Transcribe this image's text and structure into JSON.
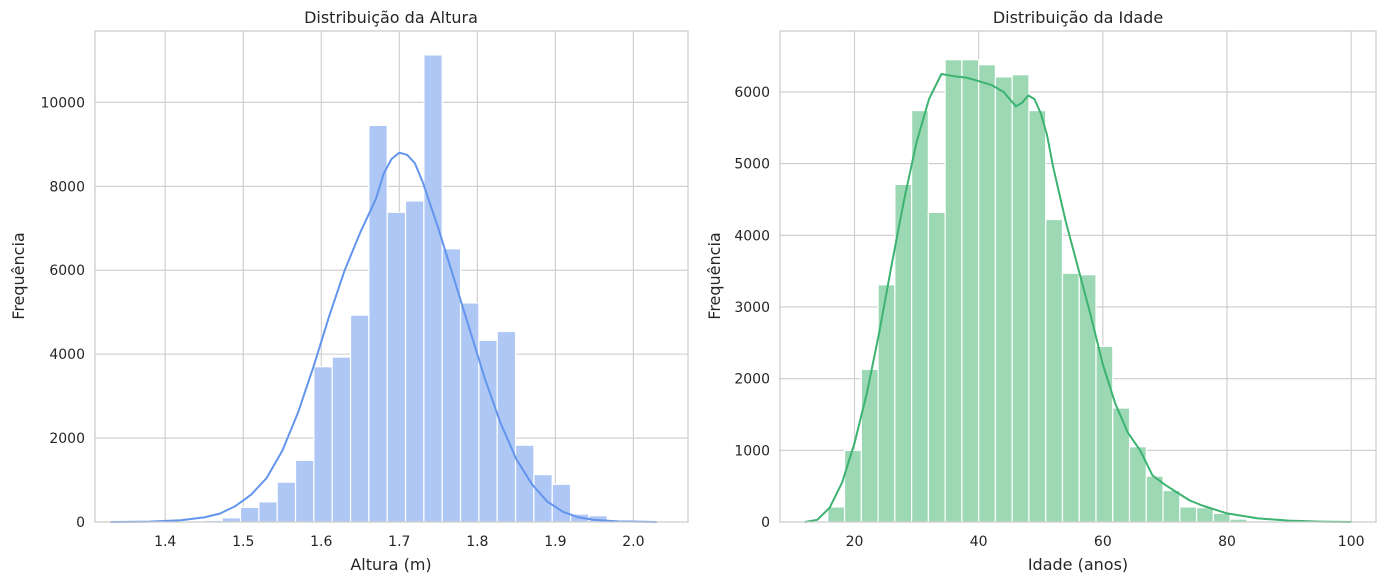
{
  "chart_data": [
    {
      "type": "bar",
      "title": "Distribuição da Altura",
      "xlabel": "Altura (m)",
      "ylabel": "Frequência",
      "xlim": [
        1.31,
        2.07
      ],
      "ylim": [
        0,
        11700
      ],
      "xticks": [
        1.4,
        1.5,
        1.6,
        1.7,
        1.8,
        1.9,
        2.0
      ],
      "xtick_labels": [
        "1.4",
        "1.5",
        "1.6",
        "1.7",
        "1.8",
        "1.9",
        "2.0"
      ],
      "yticks": [
        0,
        2000,
        4000,
        6000,
        8000,
        10000
      ],
      "ytick_labels": [
        "0",
        "2000",
        "4000",
        "6000",
        "8000",
        "10000"
      ],
      "bar_color": "#aec7f4",
      "kde_color": "#6495ed",
      "bins": [
        {
          "x0": 1.332,
          "x1": 1.3555,
          "value": 0
        },
        {
          "x0": 1.3555,
          "x1": 1.379,
          "value": 0
        },
        {
          "x0": 1.379,
          "x1": 1.4025,
          "value": 0
        },
        {
          "x0": 1.4025,
          "x1": 1.426,
          "value": 0
        },
        {
          "x0": 1.426,
          "x1": 1.4495,
          "value": 20
        },
        {
          "x0": 1.4495,
          "x1": 1.473,
          "value": 40
        },
        {
          "x0": 1.473,
          "x1": 1.4965,
          "value": 100
        },
        {
          "x0": 1.4965,
          "x1": 1.52,
          "value": 350
        },
        {
          "x0": 1.52,
          "x1": 1.5435,
          "value": 480
        },
        {
          "x0": 1.5435,
          "x1": 1.567,
          "value": 950
        },
        {
          "x0": 1.567,
          "x1": 1.5905,
          "value": 1470
        },
        {
          "x0": 1.5905,
          "x1": 1.614,
          "value": 3700
        },
        {
          "x0": 1.614,
          "x1": 1.6375,
          "value": 3930
        },
        {
          "x0": 1.6375,
          "x1": 1.661,
          "value": 4930
        },
        {
          "x0": 1.661,
          "x1": 1.6845,
          "value": 9450
        },
        {
          "x0": 1.6845,
          "x1": 1.708,
          "value": 7380
        },
        {
          "x0": 1.708,
          "x1": 1.7315,
          "value": 7650
        },
        {
          "x0": 1.7315,
          "x1": 1.755,
          "value": 11130
        },
        {
          "x0": 1.755,
          "x1": 1.7785,
          "value": 6510
        },
        {
          "x0": 1.7785,
          "x1": 1.802,
          "value": 5220
        },
        {
          "x0": 1.802,
          "x1": 1.8255,
          "value": 4330
        },
        {
          "x0": 1.8255,
          "x1": 1.849,
          "value": 4540
        },
        {
          "x0": 1.849,
          "x1": 1.8725,
          "value": 1830
        },
        {
          "x0": 1.8725,
          "x1": 1.896,
          "value": 1130
        },
        {
          "x0": 1.896,
          "x1": 1.9195,
          "value": 900
        },
        {
          "x0": 1.9195,
          "x1": 1.943,
          "value": 190
        },
        {
          "x0": 1.943,
          "x1": 1.9665,
          "value": 150
        },
        {
          "x0": 1.9665,
          "x1": 1.99,
          "value": 40
        },
        {
          "x0": 1.99,
          "x1": 2.0135,
          "value": 10
        },
        {
          "x0": 2.0135,
          "x1": 2.037,
          "value": 0
        }
      ],
      "kde": {
        "x": [
          1.33,
          1.38,
          1.42,
          1.45,
          1.47,
          1.49,
          1.51,
          1.53,
          1.55,
          1.57,
          1.59,
          1.61,
          1.63,
          1.65,
          1.67,
          1.68,
          1.69,
          1.7,
          1.71,
          1.72,
          1.73,
          1.75,
          1.77,
          1.79,
          1.81,
          1.83,
          1.85,
          1.87,
          1.89,
          1.91,
          1.93,
          1.95,
          1.98,
          2.03
        ],
        "y": [
          0,
          10,
          40,
          110,
          200,
          380,
          650,
          1050,
          1700,
          2600,
          3700,
          4900,
          6000,
          6900,
          7700,
          8300,
          8650,
          8800,
          8750,
          8550,
          8100,
          7000,
          5800,
          4600,
          3400,
          2350,
          1500,
          900,
          480,
          240,
          110,
          50,
          15,
          0
        ]
      }
    },
    {
      "type": "bar",
      "title": "Distribuição da Idade",
      "xlabel": "Idade (anos)",
      "ylabel": "Frequência",
      "xlim": [
        8,
        104
      ],
      "ylim": [
        0,
        6850
      ],
      "xticks": [
        20,
        40,
        60,
        80,
        100
      ],
      "xtick_labels": [
        "20",
        "40",
        "60",
        "80",
        "100"
      ],
      "yticks": [
        0,
        1000,
        2000,
        3000,
        4000,
        5000,
        6000
      ],
      "ytick_labels": [
        "0",
        "1000",
        "2000",
        "3000",
        "4000",
        "5000",
        "6000"
      ],
      "bar_color": "#9dd8b5",
      "kde_color": "#3cb371",
      "bins": [
        {
          "x0": 13.0,
          "x1": 15.7,
          "value": 0
        },
        {
          "x0": 15.7,
          "x1": 18.4,
          "value": 210
        },
        {
          "x0": 18.4,
          "x1": 21.1,
          "value": 1000
        },
        {
          "x0": 21.1,
          "x1": 23.8,
          "value": 2130
        },
        {
          "x0": 23.8,
          "x1": 26.5,
          "value": 3310
        },
        {
          "x0": 26.5,
          "x1": 29.2,
          "value": 4710
        },
        {
          "x0": 29.2,
          "x1": 31.9,
          "value": 5740
        },
        {
          "x0": 31.9,
          "x1": 34.6,
          "value": 4320
        },
        {
          "x0": 34.6,
          "x1": 37.3,
          "value": 6450
        },
        {
          "x0": 37.3,
          "x1": 40.0,
          "value": 6450
        },
        {
          "x0": 40.0,
          "x1": 42.7,
          "value": 6380
        },
        {
          "x0": 42.7,
          "x1": 45.4,
          "value": 6210
        },
        {
          "x0": 45.4,
          "x1": 48.1,
          "value": 6240
        },
        {
          "x0": 48.1,
          "x1": 50.8,
          "value": 5740
        },
        {
          "x0": 50.8,
          "x1": 53.5,
          "value": 4220
        },
        {
          "x0": 53.5,
          "x1": 56.2,
          "value": 3470
        },
        {
          "x0": 56.2,
          "x1": 58.9,
          "value": 3450
        },
        {
          "x0": 58.9,
          "x1": 61.6,
          "value": 2450
        },
        {
          "x0": 61.6,
          "x1": 64.3,
          "value": 1590
        },
        {
          "x0": 64.3,
          "x1": 67.0,
          "value": 1050
        },
        {
          "x0": 67.0,
          "x1": 69.7,
          "value": 640
        },
        {
          "x0": 69.7,
          "x1": 72.4,
          "value": 440
        },
        {
          "x0": 72.4,
          "x1": 75.1,
          "value": 210
        },
        {
          "x0": 75.1,
          "x1": 77.8,
          "value": 200
        },
        {
          "x0": 77.8,
          "x1": 80.5,
          "value": 120
        },
        {
          "x0": 80.5,
          "x1": 83.2,
          "value": 40
        },
        {
          "x0": 83.2,
          "x1": 85.9,
          "value": 0
        }
      ],
      "kde": {
        "x": [
          12,
          14,
          16,
          18,
          20,
          22,
          24,
          26,
          28,
          30,
          32,
          34,
          36,
          38,
          40,
          42,
          44,
          46,
          47,
          48,
          49,
          50,
          51,
          52,
          54,
          56,
          58,
          60,
          62,
          64,
          66,
          68,
          70,
          72,
          74,
          76,
          80,
          85,
          90,
          95,
          100
        ],
        "y": [
          0,
          30,
          200,
          550,
          1100,
          1800,
          2650,
          3600,
          4500,
          5300,
          5900,
          6250,
          6220,
          6200,
          6150,
          6100,
          6000,
          5800,
          5850,
          5950,
          5900,
          5700,
          5400,
          4950,
          4200,
          3550,
          2900,
          2200,
          1650,
          1250,
          1000,
          650,
          520,
          410,
          300,
          230,
          120,
          50,
          20,
          5,
          0
        ]
      }
    }
  ]
}
